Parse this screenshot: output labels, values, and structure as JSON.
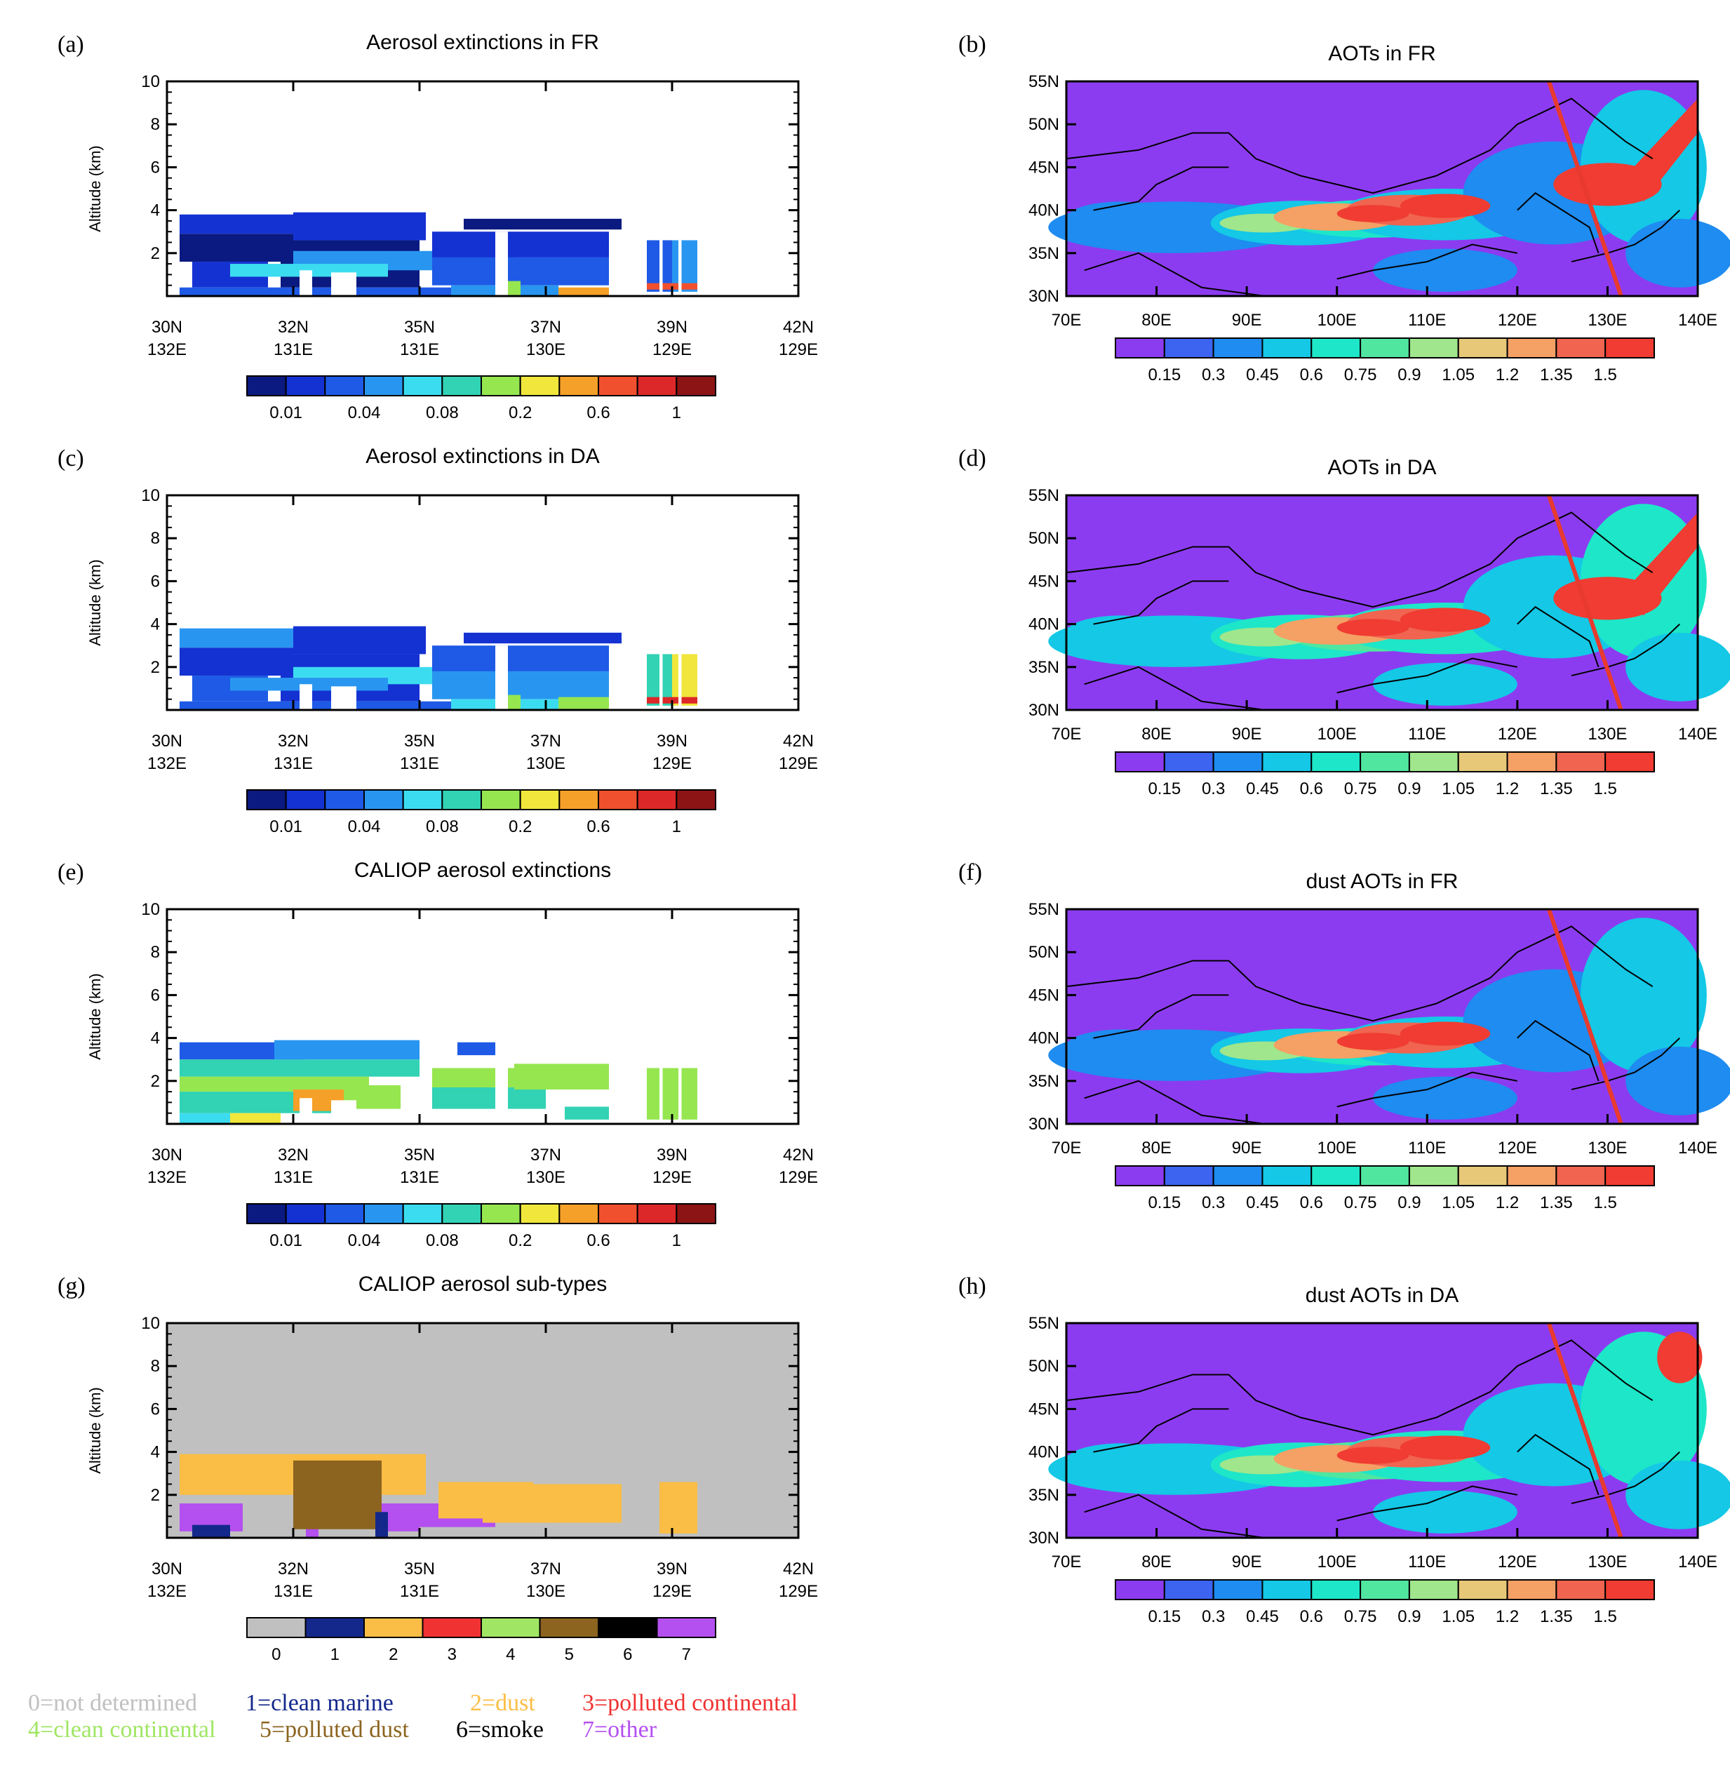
{
  "figure": {
    "colors": {
      "extinction_levels": [
        "#0a1a80",
        "#1432d2",
        "#1e5ae6",
        "#2896f0",
        "#3cdcf0",
        "#32d2b4",
        "#96e650",
        "#f0e63c",
        "#f5a028",
        "#f0502d",
        "#dc2828",
        "#8c1414"
      ],
      "aot_levels": [
        "#8c3cf0",
        "#3c64f0",
        "#1e8cf0",
        "#14c8e6",
        "#1ee6c8",
        "#50e6a0",
        "#a0e68c",
        "#e6c878",
        "#f5a064",
        "#f06450",
        "#f03c32"
      ],
      "subtype_levels": [
        "#c0c0c0",
        "#14288c",
        "#fabe46",
        "#f03232",
        "#a0e664",
        "#8c6420",
        "#000000",
        "#b450f0"
      ],
      "track": "#e83a2e",
      "frame": "#000000"
    }
  },
  "chart_data": [
    {
      "id": "a",
      "panel_label": "(a)",
      "type": "heatmap",
      "title": "Aerosol extinctions in FR",
      "ylabel": "Altitude (km)",
      "ylim": [
        0,
        10
      ],
      "yticks": [
        "2",
        "4",
        "6",
        "8",
        "10"
      ],
      "xticks_lat": [
        "30N",
        "32N",
        "35N",
        "37N",
        "39N",
        "42N"
      ],
      "xticks_lon": [
        "132E",
        "131E",
        "131E",
        "130E",
        "129E",
        "129E"
      ],
      "colorbar": {
        "labels": [
          "0.01",
          "0.04",
          "0.08",
          "0.2",
          "0.6",
          "1"
        ]
      }
    },
    {
      "id": "b",
      "panel_label": "(b)",
      "type": "heatmap",
      "title": "AOTs in FR",
      "lon_range": [
        70,
        140
      ],
      "lat_range": [
        30,
        55
      ],
      "yticks": [
        "30N",
        "35N",
        "40N",
        "45N",
        "50N",
        "55N"
      ],
      "xticks": [
        "70E",
        "80E",
        "90E",
        "100E",
        "110E",
        "120E",
        "130E",
        "140E"
      ],
      "colorbar": {
        "labels": [
          "0.15",
          "0.3",
          "0.45",
          "0.6",
          "0.75",
          "0.9",
          "1.05",
          "1.2",
          "1.35",
          "1.5"
        ]
      }
    },
    {
      "id": "c",
      "panel_label": "(c)",
      "type": "heatmap",
      "title": "Aerosol extinctions in DA",
      "ylabel": "Altitude (km)",
      "ylim": [
        0,
        10
      ],
      "yticks": [
        "2",
        "4",
        "6",
        "8",
        "10"
      ],
      "xticks_lat": [
        "30N",
        "32N",
        "35N",
        "37N",
        "39N",
        "42N"
      ],
      "xticks_lon": [
        "132E",
        "131E",
        "131E",
        "130E",
        "129E",
        "129E"
      ],
      "colorbar": {
        "labels": [
          "0.01",
          "0.04",
          "0.08",
          "0.2",
          "0.6",
          "1"
        ]
      }
    },
    {
      "id": "d",
      "panel_label": "(d)",
      "type": "heatmap",
      "title": "AOTs in DA",
      "lon_range": [
        70,
        140
      ],
      "lat_range": [
        30,
        55
      ],
      "yticks": [
        "30N",
        "35N",
        "40N",
        "45N",
        "50N",
        "55N"
      ],
      "xticks": [
        "70E",
        "80E",
        "90E",
        "100E",
        "110E",
        "120E",
        "130E",
        "140E"
      ],
      "colorbar": {
        "labels": [
          "0.15",
          "0.3",
          "0.45",
          "0.6",
          "0.75",
          "0.9",
          "1.05",
          "1.2",
          "1.35",
          "1.5"
        ]
      }
    },
    {
      "id": "e",
      "panel_label": "(e)",
      "type": "heatmap",
      "title": "CALIOP aerosol extinctions",
      "ylabel": "Altitude (km)",
      "ylim": [
        0,
        10
      ],
      "yticks": [
        "2",
        "4",
        "6",
        "8",
        "10"
      ],
      "xticks_lat": [
        "30N",
        "32N",
        "35N",
        "37N",
        "39N",
        "42N"
      ],
      "xticks_lon": [
        "132E",
        "131E",
        "131E",
        "130E",
        "129E",
        "129E"
      ],
      "colorbar": {
        "labels": [
          "0.01",
          "0.04",
          "0.08",
          "0.2",
          "0.6",
          "1"
        ]
      }
    },
    {
      "id": "f",
      "panel_label": "(f)",
      "type": "heatmap",
      "title": "dust AOTs in FR",
      "lon_range": [
        70,
        140
      ],
      "lat_range": [
        30,
        55
      ],
      "yticks": [
        "30N",
        "35N",
        "40N",
        "45N",
        "50N",
        "55N"
      ],
      "xticks": [
        "70E",
        "80E",
        "90E",
        "100E",
        "110E",
        "120E",
        "130E",
        "140E"
      ],
      "colorbar": {
        "labels": [
          "0.15",
          "0.3",
          "0.45",
          "0.6",
          "0.75",
          "0.9",
          "1.05",
          "1.2",
          "1.35",
          "1.5"
        ]
      }
    },
    {
      "id": "g",
      "panel_label": "(g)",
      "type": "heatmap",
      "title": "CALIOP aerosol sub-types",
      "ylabel": "Altitude (km)",
      "ylim": [
        0,
        10
      ],
      "yticks": [
        "2",
        "4",
        "6",
        "8",
        "10"
      ],
      "xticks_lat": [
        "30N",
        "32N",
        "35N",
        "37N",
        "39N",
        "42N"
      ],
      "xticks_lon": [
        "132E",
        "131E",
        "131E",
        "130E",
        "129E",
        "129E"
      ],
      "colorbar": {
        "labels": [
          "0",
          "1",
          "2",
          "3",
          "4",
          "5",
          "6",
          "7"
        ]
      }
    },
    {
      "id": "h",
      "panel_label": "(h)",
      "type": "heatmap",
      "title": "dust AOTs in DA",
      "lon_range": [
        70,
        140
      ],
      "lat_range": [
        30,
        55
      ],
      "yticks": [
        "30N",
        "35N",
        "40N",
        "45N",
        "50N",
        "55N"
      ],
      "xticks": [
        "70E",
        "80E",
        "90E",
        "100E",
        "110E",
        "120E",
        "130E",
        "140E"
      ],
      "colorbar": {
        "labels": [
          "0.15",
          "0.3",
          "0.45",
          "0.6",
          "0.75",
          "0.9",
          "1.05",
          "1.2",
          "1.35",
          "1.5"
        ]
      }
    }
  ],
  "legend": {
    "items": [
      {
        "text": "0=not determined",
        "color": "#c0c0c0"
      },
      {
        "text": "1=clean marine",
        "color": "#14288c"
      },
      {
        "text": "2=dust",
        "color": "#fabe46"
      },
      {
        "text": "3=polluted continental",
        "color": "#f03232"
      },
      {
        "text": "4=clean continental",
        "color": "#a0e664"
      },
      {
        "text": "5=polluted dust",
        "color": "#8c6420"
      },
      {
        "text": "6=smoke",
        "color": "#000000"
      },
      {
        "text": "7=other",
        "color": "#b450f0"
      }
    ]
  }
}
